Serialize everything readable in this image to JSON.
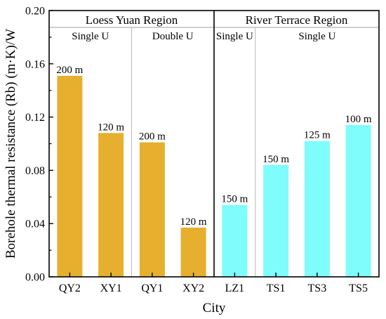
{
  "chart_data": {
    "type": "bar",
    "categories": [
      "QY2",
      "XY1",
      "QY1",
      "XY2",
      "LZ1",
      "TS1",
      "TS3",
      "TS5"
    ],
    "values": [
      0.151,
      0.108,
      0.101,
      0.037,
      0.054,
      0.084,
      0.102,
      0.114
    ],
    "bar_labels": [
      "200 m",
      "120 m",
      "200 m",
      "120 m",
      "150 m",
      "150 m",
      "125 m",
      "100 m"
    ],
    "bar_colors": [
      "#e6b02e",
      "#e6b02e",
      "#e6b02e",
      "#e6b02e",
      "#7ffcfc",
      "#7ffcfc",
      "#7ffcfc",
      "#7ffcfc"
    ],
    "xlabel": "City",
    "ylabel": "Borehole thermal resistance (Rb) (m·K)/W",
    "ylim": [
      0.0,
      0.2
    ],
    "yticks": [
      "0.00",
      "0.04",
      "0.08",
      "0.12",
      "0.16",
      "0.20"
    ],
    "grid": false,
    "regions": [
      {
        "name": "Loess Yuan Region",
        "from": 0,
        "to": 3
      },
      {
        "name": "River Terrace Region",
        "from": 4,
        "to": 7
      }
    ],
    "subgroups": [
      {
        "name": "Single U",
        "from": 0,
        "to": 1
      },
      {
        "name": "Double U",
        "from": 2,
        "to": 3
      },
      {
        "name": "Single U",
        "from": 4,
        "to": 4
      },
      {
        "name": "Single U",
        "from": 5,
        "to": 7
      }
    ]
  }
}
